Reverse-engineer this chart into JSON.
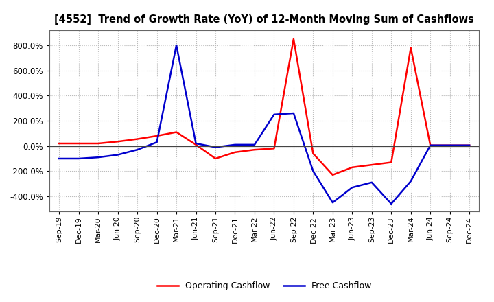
{
  "title": "[4552]  Trend of Growth Rate (YoY) of 12-Month Moving Sum of Cashflows",
  "background_color": "#ffffff",
  "plot_bg_color": "#ffffff",
  "grid_color": "#bbbbbb",
  "x_labels": [
    "Sep-19",
    "Dec-19",
    "Mar-20",
    "Jun-20",
    "Sep-20",
    "Dec-20",
    "Mar-21",
    "Jun-21",
    "Sep-21",
    "Dec-21",
    "Mar-22",
    "Jun-22",
    "Sep-22",
    "Dec-22",
    "Mar-23",
    "Jun-23",
    "Sep-23",
    "Dec-23",
    "Mar-24",
    "Jun-24",
    "Sep-24",
    "Dec-24"
  ],
  "operating_cashflow": [
    20,
    20,
    20,
    35,
    55,
    80,
    110,
    10,
    -100,
    -50,
    -30,
    -20,
    850,
    -60,
    -230,
    -170,
    -150,
    -130,
    780,
    5,
    5,
    5
  ],
  "free_cashflow": [
    -100,
    -100,
    -90,
    -70,
    -30,
    30,
    800,
    20,
    -10,
    10,
    10,
    250,
    260,
    -200,
    -450,
    -330,
    -290,
    -460,
    -280,
    5,
    5,
    5
  ],
  "ylim": [
    -520,
    920
  ],
  "yticks": [
    -400,
    -200,
    0,
    200,
    400,
    600,
    800
  ],
  "op_color": "#ff0000",
  "free_color": "#0000cd",
  "legend_labels": [
    "Operating Cashflow",
    "Free Cashflow"
  ]
}
